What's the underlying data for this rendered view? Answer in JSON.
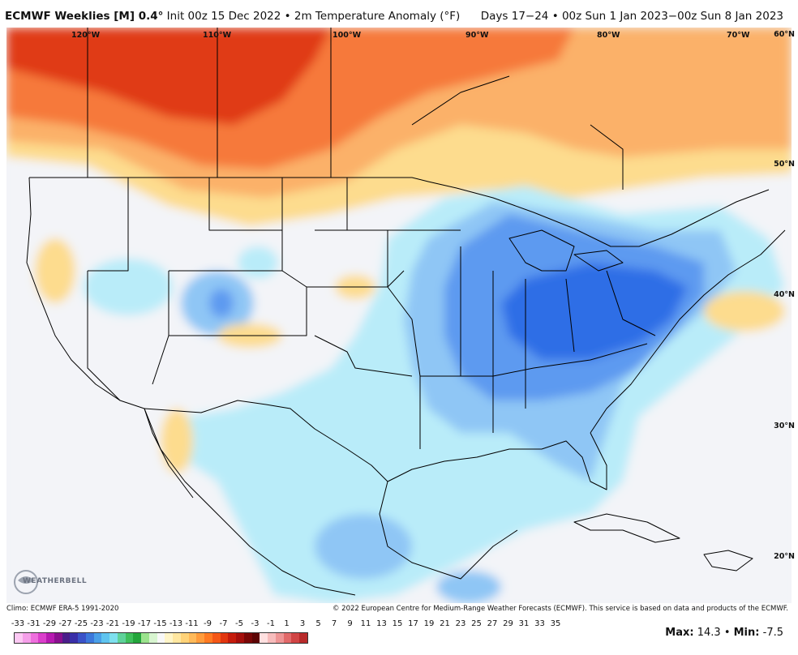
{
  "header": {
    "model": "ECMWF Weeklies [M] 0.4°",
    "init": "Init 00z 15 Dec 2022",
    "bullet": "•",
    "field": "2m Temperature Anomaly (°F)",
    "valid": "Days 17−24 • 00z Sun 1 Jan 2023−00z Sun 8 Jan 2023"
  },
  "map": {
    "longitude_labels": [
      "120°W",
      "110°W",
      "100°W",
      "90°W",
      "80°W",
      "70°W"
    ],
    "latitude_labels": [
      "60°N",
      "50°N",
      "40°N",
      "30°N",
      "20°N"
    ],
    "colors": {
      "ocean_neutral": "#f3f4f8",
      "warm_strong": "#e03a12",
      "warm_moderate": "#f6793a",
      "warm_light": "#fbb169",
      "warm_faint": "#fddc8e",
      "cool_faint": "#b9ecf9",
      "cool_light": "#8fc6f5",
      "cool_moderate": "#5d9af0",
      "cool_strong": "#2f6ee6",
      "border": "#000000"
    }
  },
  "logo": {
    "text": "WEATHERBELL"
  },
  "footer": {
    "climo": "Climo: ECMWF ERA-5 1991-2020",
    "copyright": "© 2022 European Centre for Medium-Range Weather Forecasts (ECMWF). This service is based on data and products of the ECMWF."
  },
  "legend": {
    "labels": [
      "-33",
      "-31",
      "-29",
      "-27",
      "-25",
      "-23",
      "-21",
      "-19",
      "-17",
      "-15",
      "-13",
      "-11",
      "-9",
      "-7",
      "-5",
      "-3",
      "-1",
      "1",
      "3",
      "5",
      "7",
      "9",
      "11",
      "13",
      "15",
      "17",
      "19",
      "21",
      "23",
      "25",
      "27",
      "29",
      "31",
      "33",
      "35"
    ],
    "colors": [
      "#fcc8f3",
      "#f59fe9",
      "#ee6fdd",
      "#db3fcb",
      "#b71ab1",
      "#8a108f",
      "#4b1e8a",
      "#3a2fa8",
      "#3a52c8",
      "#3c78db",
      "#4aa0e8",
      "#5fc4ef",
      "#7ee0ee",
      "#5fd29a",
      "#3fbf5b",
      "#23a53b",
      "#9be38d",
      "#d8f5d0",
      "#f8f8f8",
      "#fff5c8",
      "#ffe7a0",
      "#ffd379",
      "#ffba5a",
      "#ff9c3c",
      "#ff7a22",
      "#f55716",
      "#e2360f",
      "#c51b0c",
      "#a50f0c",
      "#7a0707",
      "#5c0505",
      "#ffe0e0",
      "#f7bcbc",
      "#ee9595",
      "#e26a6a",
      "#d14545",
      "#b82a2a"
    ]
  },
  "stats": {
    "max_label": "Max:",
    "max_value": "14.3",
    "sep": "•",
    "min_label": "Min:",
    "min_value": "-7.5"
  }
}
